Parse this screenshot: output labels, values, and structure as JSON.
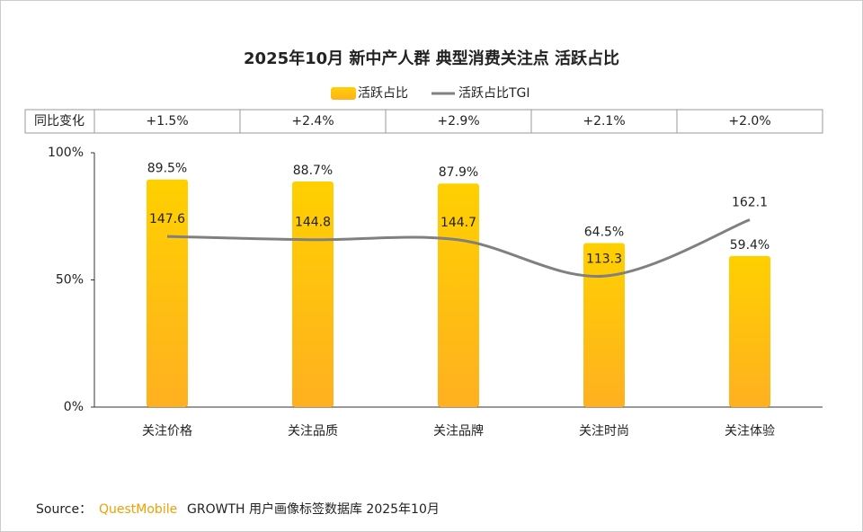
{
  "chart_data": {
    "type": "bar",
    "title": "2025年10月 新中产人群 典型消费关注点 活跃占比",
    "categories": [
      "关注价格",
      "关注品质",
      "关注品牌",
      "关注时尚",
      "关注体验"
    ],
    "series": [
      {
        "name": "活跃占比",
        "color": "#ffc000",
        "values": [
          89.5,
          88.7,
          87.9,
          64.5,
          59.4
        ],
        "value_labels": [
          "89.5%",
          "88.7%",
          "87.9%",
          "64.5%",
          "59.4%"
        ]
      },
      {
        "name": "活跃占比TGI",
        "type": "line",
        "axis": "y2",
        "color": "#808080",
        "values": [
          147.6,
          144.8,
          144.7,
          113.3,
          162.1
        ]
      }
    ],
    "ylim": [
      0,
      100
    ],
    "yticks": [
      {
        "value": 0,
        "label": "0%"
      },
      {
        "value": 50,
        "label": "50%"
      },
      {
        "value": 100,
        "label": "100%"
      }
    ],
    "y2lim": [
      0,
      220
    ],
    "yoy_label": "同比变化",
    "yoy": [
      "+1.5%",
      "+2.4%",
      "+2.9%",
      "+2.1%",
      "+2.0%"
    ],
    "source_label": "Source：",
    "source_brand": "QuestMobile",
    "source_text": "GROWTH 用户画像标签数据库 2025年10月"
  }
}
